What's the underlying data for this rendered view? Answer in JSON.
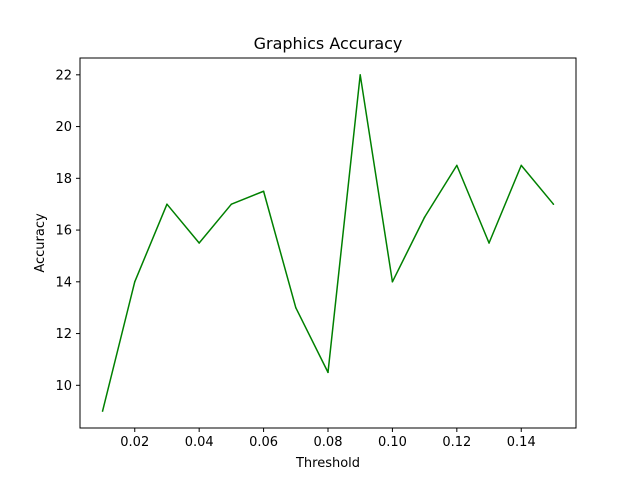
{
  "chart_data": {
    "type": "line",
    "title": "Graphics Accuracy",
    "xlabel": "Threshold",
    "ylabel": "Accuracy",
    "xlim": [
      0.003,
      0.157
    ],
    "ylim": [
      8.35,
      22.65
    ],
    "xticks": [
      0.02,
      0.04,
      0.06,
      0.08,
      0.1,
      0.12,
      0.14
    ],
    "xtick_labels": [
      "0.02",
      "0.04",
      "0.06",
      "0.08",
      "0.10",
      "0.12",
      "0.14"
    ],
    "yticks": [
      10,
      12,
      14,
      16,
      18,
      20,
      22
    ],
    "ytick_labels": [
      "10",
      "12",
      "14",
      "16",
      "18",
      "20",
      "22"
    ],
    "grid": false,
    "legend": "none",
    "series": [
      {
        "color": "#008000",
        "x": [
          0.01,
          0.02,
          0.03,
          0.04,
          0.05,
          0.06,
          0.07,
          0.08,
          0.09,
          0.1,
          0.11,
          0.12,
          0.13,
          0.14,
          0.15
        ],
        "values": [
          9.0,
          14.0,
          17.0,
          15.5,
          17.0,
          17.5,
          13.0,
          10.5,
          22.0,
          14.0,
          16.5,
          18.5,
          15.5,
          18.5,
          17.0
        ]
      }
    ]
  }
}
